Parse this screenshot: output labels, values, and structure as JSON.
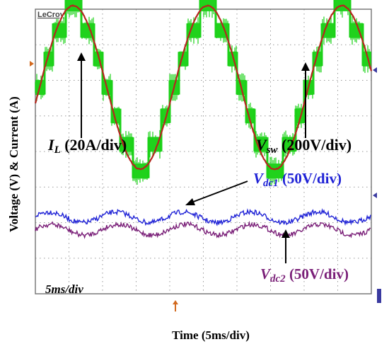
{
  "scope_brand": "LeCroy",
  "colors": {
    "screen": "#ffffff",
    "grid": "#9a9a9a",
    "vsw": "#1bd118",
    "il": "#b5261e",
    "vdc1": "#1f22d6",
    "vdc2": "#7a1f78",
    "marker_ch": "#d2691e",
    "marker_ref": "#3a3aa0",
    "text": "#000000"
  },
  "chart_data": {
    "type": "line",
    "ylabel": "Voltage (V) & Current (A)",
    "xlabel": "Time (5ms/div)",
    "timebase_label": "5ms/div",
    "timebase_ms_per_div": 5,
    "divisions": {
      "x": 10,
      "y": 8
    },
    "time_range_ms": [
      0,
      50
    ],
    "grid": true,
    "series": [
      {
        "name": "V_sw",
        "label_sym": "V",
        "label_sub": "sw",
        "label_scale": "(200V/div)",
        "scale_per_div": 200,
        "unit": "V",
        "description": "seven-level staircase switching voltage",
        "period_ms": 20,
        "step_levels_div": [
          0.0,
          0.8,
          1.6,
          2.35
        ],
        "envelope": "green"
      },
      {
        "name": "I_L",
        "label_sym": "I",
        "label_sub": "L",
        "label_scale": "(20A/div)",
        "scale_per_div": 20,
        "unit": "A",
        "period_ms": 20,
        "amplitude_div": 2.3
      },
      {
        "name": "V_dc1",
        "label_sym": "V",
        "label_sub": "dc1",
        "label_scale": "(50V/div)",
        "scale_per_div": 50,
        "unit": "V",
        "ripple_div": 0.15,
        "ripple_period_ms": 10
      },
      {
        "name": "V_dc2",
        "label_sym": "V",
        "label_sub": "dc2",
        "label_scale": "(50V/div)",
        "scale_per_div": 50,
        "unit": "V",
        "ripple_div": 0.15,
        "ripple_period_ms": 10
      }
    ]
  }
}
